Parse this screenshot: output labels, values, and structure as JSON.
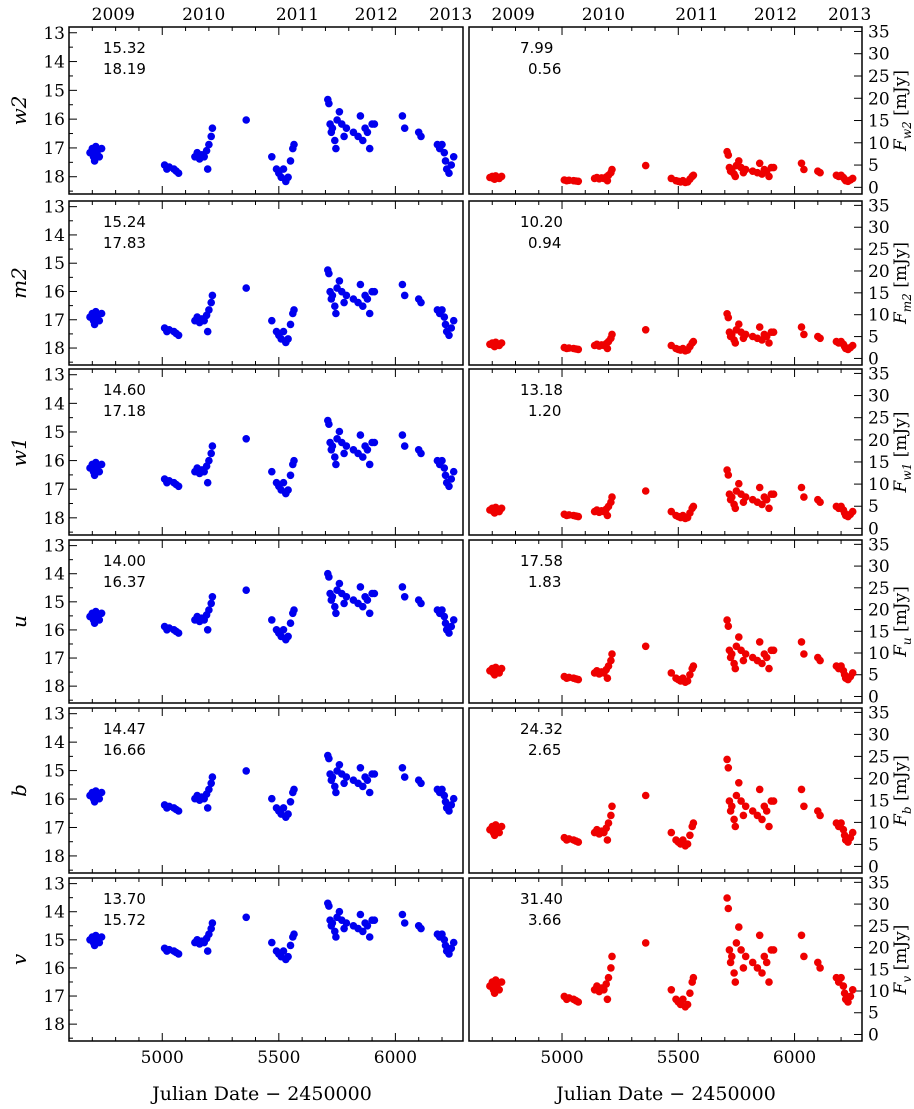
{
  "chart_data": {
    "type": "scatter",
    "xlabel": "Julian Date − 2450000",
    "top_axis_labels": [
      "2009",
      "2010",
      "2011",
      "2012",
      "2013"
    ],
    "xlim": [
      4600,
      6290
    ],
    "xticks": [
      "5000",
      "5500",
      "6000"
    ],
    "left_ylim": [
      18.6,
      12.8
    ],
    "left_yticks": [
      "13",
      "14",
      "15",
      "16",
      "17",
      "18"
    ],
    "right_ylim": [
      -1.5,
      36
    ],
    "right_yticks": [
      "0",
      "5",
      "10",
      "15",
      "20",
      "25",
      "30",
      "35"
    ],
    "right_yunit": "[mJy]",
    "colors": {
      "magnitudes": "#0000ee",
      "fluxes": "#ee0000"
    },
    "filters": [
      {
        "band": "w2",
        "flux_label": "w2",
        "mag_min": "15.32",
        "mag_max": "18.19",
        "flux_max": "7.99",
        "flux_min": "0.56"
      },
      {
        "band": "m2",
        "flux_label": "m2",
        "mag_min": "15.24",
        "mag_max": "17.83",
        "flux_max": "10.20",
        "flux_min": "0.94"
      },
      {
        "band": "w1",
        "flux_label": "w1",
        "mag_min": "14.60",
        "mag_max": "17.18",
        "flux_max": "13.18",
        "flux_min": "1.20"
      },
      {
        "band": "u",
        "flux_label": "u",
        "mag_min": "14.00",
        "mag_max": "16.37",
        "flux_max": "17.58",
        "flux_min": "1.83"
      },
      {
        "band": "b",
        "flux_label": "b",
        "mag_min": "14.47",
        "mag_max": "16.66",
        "flux_max": "24.32",
        "flux_min": "2.65"
      },
      {
        "band": "v",
        "flux_label": "v",
        "mag_min": "13.70",
        "mag_max": "15.72",
        "flux_max": "31.40",
        "flux_min": "3.66"
      }
    ],
    "light_curve_v_mag": [
      [
        4690,
        15.0
      ],
      [
        4700,
        14.9
      ],
      [
        4705,
        15.1
      ],
      [
        4710,
        15.2
      ],
      [
        4715,
        14.85
      ],
      [
        4720,
        15.0
      ],
      [
        4730,
        15.1
      ],
      [
        4740,
        14.9
      ],
      [
        5010,
        15.3
      ],
      [
        5020,
        15.4
      ],
      [
        5030,
        15.35
      ],
      [
        5050,
        15.4
      ],
      [
        5060,
        15.45
      ],
      [
        5070,
        15.5
      ],
      [
        5140,
        15.1
      ],
      [
        5150,
        15.0
      ],
      [
        5160,
        15.15
      ],
      [
        5170,
        15.05
      ],
      [
        5180,
        15.1
      ],
      [
        5190,
        14.95
      ],
      [
        5195,
        15.4
      ],
      [
        5200,
        14.8
      ],
      [
        5210,
        14.6
      ],
      [
        5215,
        14.4
      ],
      [
        5360,
        14.2
      ],
      [
        5470,
        15.1
      ],
      [
        5490,
        15.4
      ],
      [
        5500,
        15.5
      ],
      [
        5510,
        15.6
      ],
      [
        5520,
        15.4
      ],
      [
        5530,
        15.7
      ],
      [
        5540,
        15.6
      ],
      [
        5550,
        15.2
      ],
      [
        5560,
        14.9
      ],
      [
        5565,
        14.8
      ],
      [
        5710,
        13.7
      ],
      [
        5715,
        13.8
      ],
      [
        5720,
        14.3
      ],
      [
        5725,
        14.5
      ],
      [
        5730,
        14.4
      ],
      [
        5740,
        14.7
      ],
      [
        5745,
        14.9
      ],
      [
        5750,
        14.2
      ],
      [
        5760,
        14.0
      ],
      [
        5770,
        14.3
      ],
      [
        5780,
        14.6
      ],
      [
        5790,
        14.4
      ],
      [
        5820,
        14.5
      ],
      [
        5840,
        14.6
      ],
      [
        5850,
        14.1
      ],
      [
        5860,
        14.7
      ],
      [
        5870,
        14.4
      ],
      [
        5880,
        14.5
      ],
      [
        5890,
        14.9
      ],
      [
        5900,
        14.3
      ],
      [
        5910,
        14.3
      ],
      [
        6030,
        14.1
      ],
      [
        6040,
        14.4
      ],
      [
        6100,
        14.5
      ],
      [
        6110,
        14.6
      ],
      [
        6180,
        14.8
      ],
      [
        6190,
        14.9
      ],
      [
        6200,
        14.8
      ],
      [
        6210,
        15.0
      ],
      [
        6215,
        15.2
      ],
      [
        6220,
        15.4
      ],
      [
        6230,
        15.5
      ],
      [
        6240,
        15.3
      ],
      [
        6250,
        15.1
      ]
    ]
  }
}
